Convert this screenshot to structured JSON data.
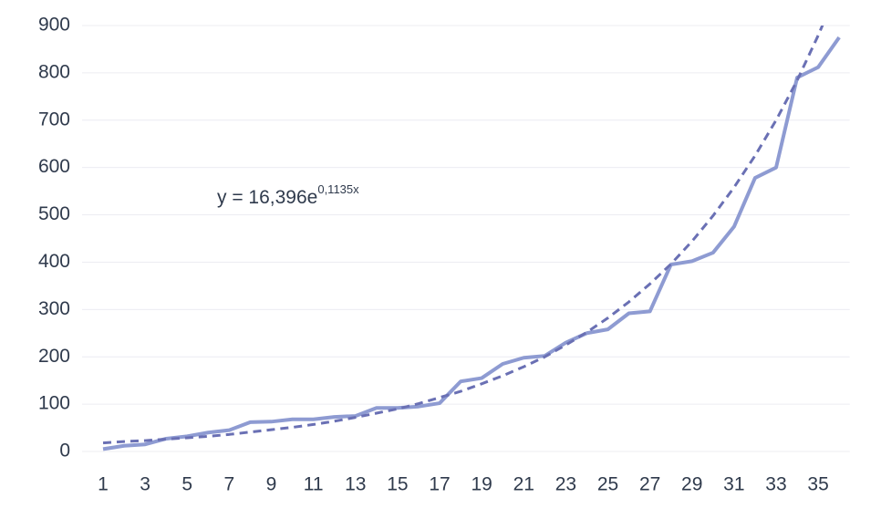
{
  "chart_data": {
    "type": "line",
    "annotation": {
      "base": "y = 16,396e",
      "exponent": "0,1135x"
    },
    "categories": [
      1,
      null,
      3,
      null,
      5,
      null,
      7,
      null,
      9,
      null,
      11,
      null,
      13,
      null,
      15,
      null,
      17,
      null,
      19,
      null,
      21,
      null,
      23,
      null,
      25,
      null,
      27,
      null,
      29,
      null,
      31,
      null,
      33,
      null,
      35,
      null
    ],
    "series": [
      {
        "color": "#8e9bd2",
        "dashed": false,
        "values": [
          5,
          12,
          15,
          27,
          32,
          40,
          45,
          62,
          63,
          68,
          68,
          73,
          75,
          92,
          92,
          95,
          102,
          148,
          155,
          185,
          198,
          202,
          230,
          250,
          258,
          292,
          296,
          395,
          402,
          420,
          475,
          578,
          600,
          790,
          812,
          875
        ]
      },
      {
        "color": "#6a70b4",
        "dashed": true,
        "values": [
          18,
          21,
          23,
          26,
          29,
          32,
          36,
          41,
          46,
          51,
          57,
          64,
          72,
          81,
          90,
          101,
          114,
          127,
          143,
          160,
          179,
          200,
          225,
          252,
          282,
          316,
          354,
          396,
          444,
          498,
          558,
          625,
          700,
          784,
          879,
          984
        ]
      }
    ],
    "ylim": [
      0,
      900
    ],
    "yticks": [
      0,
      100,
      200,
      300,
      400,
      500,
      600,
      700,
      800,
      900
    ],
    "grid": true
  }
}
